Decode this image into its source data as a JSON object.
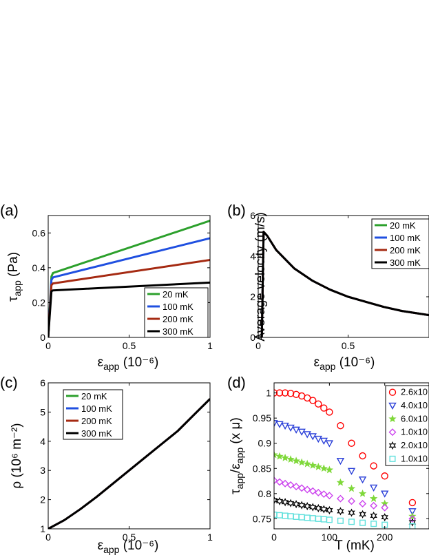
{
  "panel_labels": [
    "(a)",
    "(b)",
    "(c)",
    "(d)"
  ],
  "colors": {
    "20 mK": "#2ca02c",
    "100 mK": "#1f4fe0",
    "200 mK": "#a52a12",
    "300 mK": "#000000"
  },
  "chart_data": [
    {
      "panel": "(a)",
      "type": "line",
      "xlabel": "ε_app (10⁻⁶)",
      "ylabel": "τ_app (Pa)",
      "xlim": [
        0,
        1
      ],
      "ylim": [
        0,
        0.7
      ],
      "xticks": [
        "0",
        "0.5",
        "1"
      ],
      "yticks": [
        "0",
        "0.2",
        "0.4",
        "0.6"
      ],
      "legend": "bottom-right",
      "series": [
        {
          "name": "20 mK",
          "x": [
            0,
            0.02,
            0.03,
            1
          ],
          "values": [
            0,
            0.35,
            0.37,
            0.67
          ]
        },
        {
          "name": "100 mK",
          "x": [
            0,
            0.02,
            0.03,
            1
          ],
          "values": [
            0,
            0.33,
            0.345,
            0.57
          ]
        },
        {
          "name": "200 mK",
          "x": [
            0,
            0.02,
            0.03,
            1
          ],
          "values": [
            0,
            0.3,
            0.31,
            0.445
          ]
        },
        {
          "name": "300 mK",
          "x": [
            0,
            0.02,
            0.03,
            1
          ],
          "values": [
            0,
            0.265,
            0.27,
            0.315
          ]
        }
      ]
    },
    {
      "panel": "(b)",
      "type": "line",
      "xlabel": "ε_app (10⁻⁶)",
      "ylabel": "Average velocity (m/s)",
      "xlim": [
        0,
        0.95
      ],
      "ylim": [
        0,
        6
      ],
      "xticks": [
        "0",
        "0.5"
      ],
      "yticks": [
        "0",
        "2",
        "4",
        "6"
      ],
      "legend": "top-right",
      "series": [
        {
          "name": "20 mK",
          "x": [
            0,
            0.02,
            0.03,
            0.05,
            0.1,
            0.2,
            0.3,
            0.4,
            0.5,
            0.6,
            0.7,
            0.8,
            0.95
          ],
          "values": [
            0,
            0,
            5.2,
            5.0,
            4.3,
            3.4,
            2.8,
            2.35,
            2.0,
            1.75,
            1.5,
            1.3,
            1.1
          ]
        },
        {
          "name": "100 mK",
          "x": [
            0,
            0.02,
            0.03,
            0.05,
            0.1,
            0.2,
            0.3,
            0.4,
            0.5,
            0.6,
            0.7,
            0.8,
            0.95
          ],
          "values": [
            0,
            0,
            5.2,
            5.0,
            4.3,
            3.4,
            2.8,
            2.35,
            2.0,
            1.75,
            1.5,
            1.3,
            1.1
          ]
        },
        {
          "name": "200 mK",
          "x": [
            0,
            0.02,
            0.03,
            0.05,
            0.1,
            0.2,
            0.3,
            0.4,
            0.5,
            0.6,
            0.7,
            0.8,
            0.95
          ],
          "values": [
            0,
            0,
            5.2,
            5.0,
            4.3,
            3.4,
            2.8,
            2.35,
            2.0,
            1.75,
            1.5,
            1.3,
            1.1
          ]
        },
        {
          "name": "300 mK",
          "x": [
            0,
            0.02,
            0.03,
            0.05,
            0.1,
            0.2,
            0.3,
            0.4,
            0.5,
            0.6,
            0.7,
            0.8,
            0.95
          ],
          "values": [
            0,
            0,
            5.2,
            5.0,
            4.3,
            3.4,
            2.8,
            2.35,
            2.0,
            1.75,
            1.5,
            1.3,
            1.1
          ]
        }
      ]
    },
    {
      "panel": "(c)",
      "type": "line",
      "xlabel": "ε_app (10⁻⁶)",
      "ylabel": "ρ (10⁶ m⁻²)",
      "xlim": [
        0,
        1
      ],
      "ylim": [
        1,
        6
      ],
      "xticks": [
        "0",
        "0.5",
        "1"
      ],
      "yticks": [
        "1",
        "2",
        "3",
        "4",
        "5",
        "6"
      ],
      "legend": "top-left",
      "series": [
        {
          "name": "20 mK",
          "x": [
            0,
            0.1,
            0.2,
            0.3,
            0.4,
            0.5,
            0.6,
            0.7,
            0.8,
            0.9,
            1.0
          ],
          "values": [
            1.0,
            1.3,
            1.68,
            2.1,
            2.55,
            3.0,
            3.45,
            3.9,
            4.35,
            4.9,
            5.45
          ]
        },
        {
          "name": "100 mK",
          "x": [
            0,
            0.1,
            0.2,
            0.3,
            0.4,
            0.5,
            0.6,
            0.7,
            0.8,
            0.9,
            1.0
          ],
          "values": [
            1.0,
            1.3,
            1.68,
            2.1,
            2.55,
            3.0,
            3.45,
            3.9,
            4.35,
            4.9,
            5.45
          ]
        },
        {
          "name": "200 mK",
          "x": [
            0,
            0.1,
            0.2,
            0.3,
            0.4,
            0.5,
            0.6,
            0.7,
            0.8,
            0.9,
            1.0
          ],
          "values": [
            1.0,
            1.3,
            1.68,
            2.1,
            2.55,
            3.0,
            3.45,
            3.9,
            4.35,
            4.9,
            5.45
          ]
        },
        {
          "name": "300 mK",
          "x": [
            0,
            0.1,
            0.2,
            0.3,
            0.4,
            0.5,
            0.6,
            0.7,
            0.8,
            0.9,
            1.0
          ],
          "values": [
            1.0,
            1.3,
            1.68,
            2.1,
            2.55,
            3.0,
            3.45,
            3.9,
            4.35,
            4.9,
            5.45
          ]
        }
      ]
    },
    {
      "panel": "(d)",
      "type": "scatter",
      "xlabel": "T (mK)",
      "ylabel": "τ_app/ε_app (x μ)",
      "xlim": [
        0,
        280
      ],
      "ylim": [
        0.73,
        1.02
      ],
      "xticks": [
        "0",
        "100",
        "200"
      ],
      "yticks": [
        "0.75",
        "0.8",
        "0.85",
        "0.9",
        "0.95",
        "1"
      ],
      "legend": "top-right",
      "series": [
        {
          "name": "2.6x10",
          "color": "#ff0000",
          "marker": "circle",
          "x": [
            0,
            10,
            20,
            30,
            40,
            50,
            60,
            70,
            80,
            90,
            100,
            120,
            140,
            160,
            180,
            200,
            250
          ],
          "values": [
            1.0,
            1.0,
            1.0,
            0.999,
            0.997,
            0.994,
            0.99,
            0.985,
            0.978,
            0.97,
            0.962,
            0.935,
            0.9,
            0.875,
            0.855,
            0.835,
            0.782
          ]
        },
        {
          "name": "4.0x10",
          "color": "#2a3fd8",
          "marker": "triangle-down",
          "x": [
            0,
            10,
            20,
            30,
            40,
            50,
            60,
            70,
            80,
            90,
            100,
            120,
            140,
            160,
            180,
            200,
            250
          ],
          "values": [
            0.94,
            0.938,
            0.935,
            0.931,
            0.927,
            0.923,
            0.918,
            0.914,
            0.909,
            0.905,
            0.9,
            0.865,
            0.845,
            0.828,
            0.812,
            0.8,
            0.765
          ]
        },
        {
          "name": "6.0x10",
          "color": "#7fd83a",
          "marker": "star5",
          "x": [
            0,
            10,
            20,
            30,
            40,
            50,
            60,
            70,
            80,
            90,
            100,
            120,
            140,
            160,
            180,
            200,
            250
          ],
          "values": [
            0.877,
            0.874,
            0.871,
            0.868,
            0.865,
            0.862,
            0.859,
            0.856,
            0.853,
            0.85,
            0.847,
            0.822,
            0.81,
            0.8,
            0.79,
            0.78,
            0.755
          ]
        },
        {
          "name": "1.0x10",
          "color": "#cc44ee",
          "marker": "diamond",
          "x": [
            0,
            10,
            20,
            30,
            40,
            50,
            60,
            70,
            80,
            90,
            100,
            120,
            140,
            160,
            180,
            200,
            250
          ],
          "values": [
            0.826,
            0.823,
            0.82,
            0.817,
            0.814,
            0.811,
            0.808,
            0.805,
            0.802,
            0.799,
            0.796,
            0.79,
            0.785,
            0.78,
            0.776,
            0.772,
            0.75
          ]
        },
        {
          "name": "2.0x10",
          "color": "#000000",
          "marker": "star6",
          "x": [
            0,
            10,
            20,
            30,
            40,
            50,
            60,
            70,
            80,
            90,
            100,
            120,
            140,
            160,
            180,
            200,
            250
          ],
          "values": [
            0.787,
            0.785,
            0.783,
            0.781,
            0.779,
            0.777,
            0.775,
            0.773,
            0.771,
            0.769,
            0.767,
            0.765,
            0.762,
            0.759,
            0.756,
            0.753,
            0.743
          ]
        },
        {
          "name": "1.0x10",
          "color": "#5fe0dc",
          "marker": "square",
          "x": [
            0,
            10,
            20,
            30,
            40,
            50,
            60,
            70,
            80,
            90,
            100,
            120,
            140,
            160,
            180,
            200,
            250
          ],
          "values": [
            0.758,
            0.757,
            0.756,
            0.755,
            0.754,
            0.753,
            0.752,
            0.751,
            0.75,
            0.749,
            0.748,
            0.746,
            0.744,
            0.742,
            0.74,
            0.738,
            0.735
          ]
        }
      ]
    }
  ]
}
